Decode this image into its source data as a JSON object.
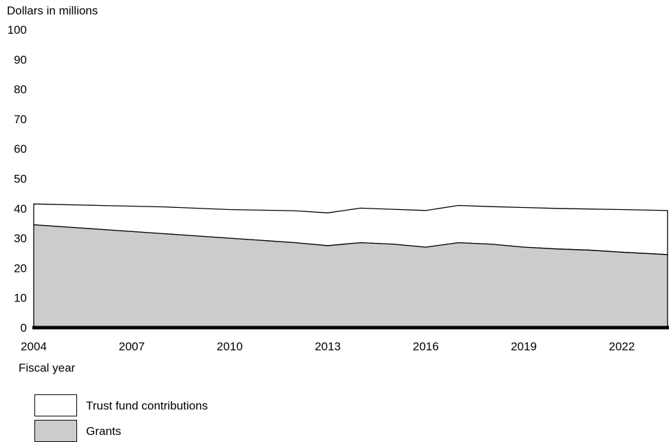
{
  "chart_data": {
    "type": "area",
    "stacked": true,
    "ylabel": "Dollars in millions",
    "xlabel": "Fiscal year",
    "ylim": [
      0,
      100
    ],
    "yticks": [
      0,
      10,
      20,
      30,
      40,
      50,
      60,
      70,
      80,
      90,
      100
    ],
    "xlim": [
      2004,
      2023.4
    ],
    "xticks": [
      2004,
      2007,
      2010,
      2013,
      2016,
      2019,
      2022
    ],
    "grid": false,
    "legend_position": "bottom-left",
    "x": [
      2004,
      2006,
      2008,
      2010,
      2012,
      2013,
      2014,
      2015,
      2016,
      2017,
      2018,
      2019,
      2020,
      2021,
      2022,
      2023.4
    ],
    "series": [
      {
        "name": "Grants",
        "color": "#cccccc",
        "values": [
          34.5,
          33,
          31.5,
          30,
          28.5,
          27.5,
          28.5,
          28,
          27,
          28.5,
          28,
          27,
          26.4,
          26,
          25.3,
          24.5
        ]
      },
      {
        "name": "Trust fund contributions",
        "color": "#ffffff",
        "values": [
          7,
          8,
          9,
          9.6,
          10.7,
          11,
          11.6,
          11.7,
          12.3,
          12.5,
          12.6,
          13.3,
          13.6,
          13.8,
          14.3,
          14.8
        ]
      }
    ]
  }
}
